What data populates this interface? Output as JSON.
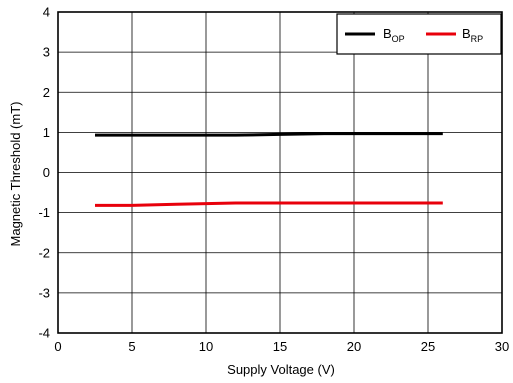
{
  "chart_data": {
    "type": "line",
    "xlabel": "Supply Voltage (V)",
    "ylabel": "Magnetic Threshold (mT)",
    "xlim": [
      0,
      30
    ],
    "ylim": [
      -4,
      4
    ],
    "xticks": [
      "0",
      "5",
      "10",
      "15",
      "20",
      "25",
      "30"
    ],
    "yticks": [
      "4",
      "3",
      "2",
      "1",
      "0",
      "-1",
      "-2",
      "-3",
      "-4"
    ],
    "grid": true,
    "legend_position": "top-right",
    "series": [
      {
        "name_main": "B",
        "name_sub": "OP",
        "color": "#000000",
        "x": [
          2.5,
          5,
          8,
          12,
          15,
          18,
          20,
          22,
          24,
          26
        ],
        "y": [
          0.93,
          0.93,
          0.93,
          0.93,
          0.95,
          0.97,
          0.97,
          0.97,
          0.97,
          0.97
        ]
      },
      {
        "name_main": "B",
        "name_sub": "RP",
        "color": "#e8000b",
        "x": [
          2.5,
          5,
          8,
          12,
          15,
          18,
          20,
          22,
          24,
          26
        ],
        "y": [
          -0.82,
          -0.82,
          -0.79,
          -0.76,
          -0.76,
          -0.76,
          -0.76,
          -0.76,
          -0.76,
          -0.76
        ]
      }
    ]
  }
}
